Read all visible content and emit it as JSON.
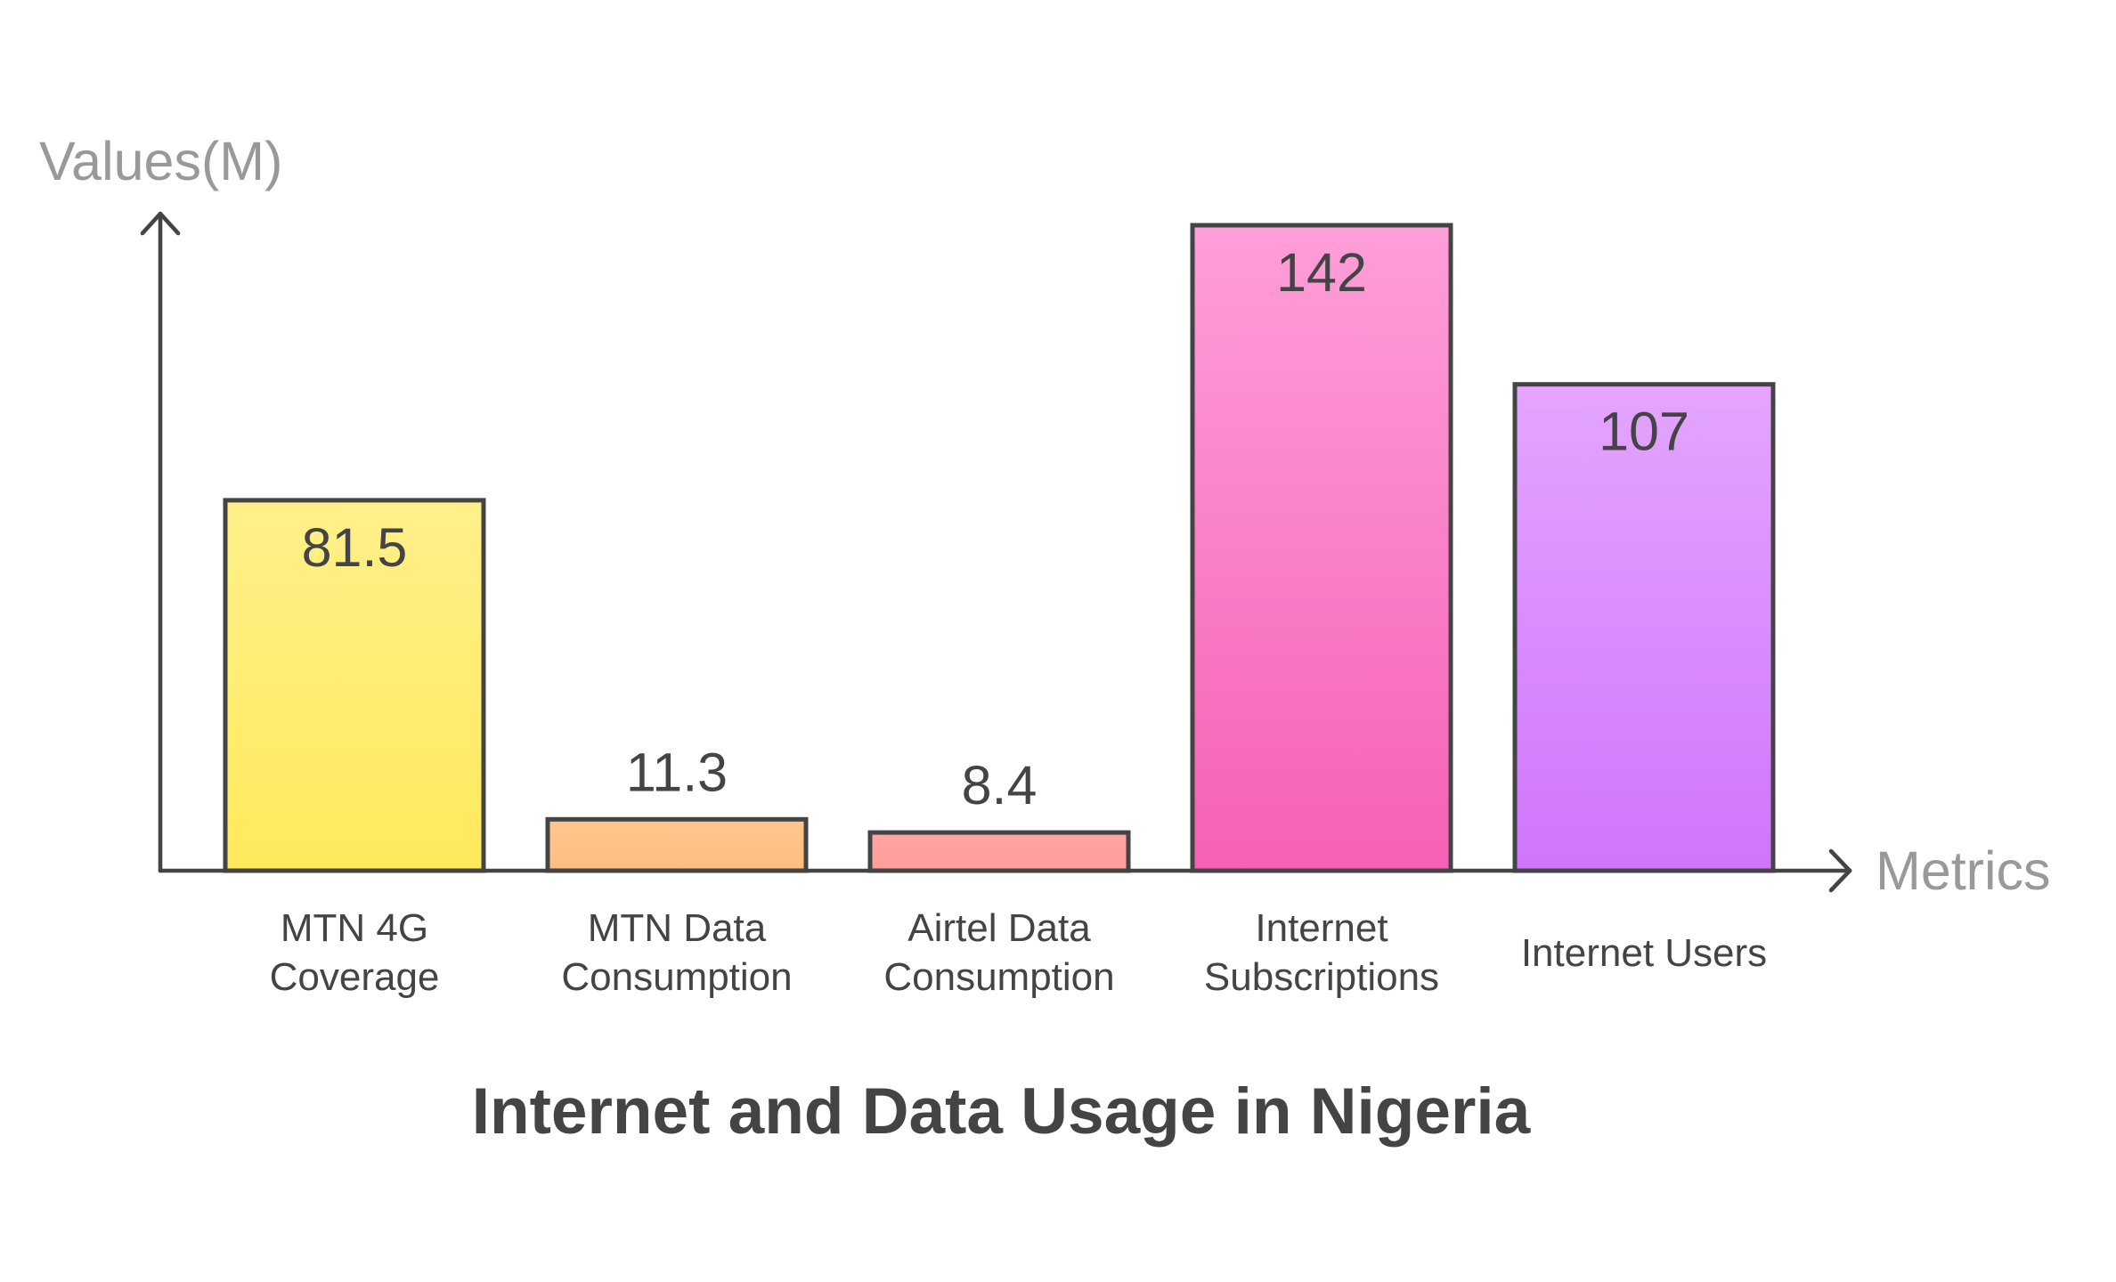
{
  "chart_data": {
    "type": "bar",
    "title": "Internet and Data Usage in Nigeria",
    "xlabel": "Metrics",
    "ylabel": "Values(M)",
    "categories": [
      [
        "MTN 4G",
        "Coverage"
      ],
      [
        "MTN Data",
        "Consumption"
      ],
      [
        "Airtel Data",
        "Consumption"
      ],
      [
        "Internet",
        "Subscriptions"
      ],
      [
        "Internet Users"
      ]
    ],
    "values": [
      81.5,
      11.3,
      8.4,
      142,
      107
    ],
    "value_labels": [
      "81.5",
      "11.3",
      "8.4",
      "142",
      "107"
    ],
    "ylim": [
      0,
      142
    ],
    "grid": false,
    "legend": "none",
    "colors": [
      {
        "top": "#fff08a",
        "bottom": "#ffe95c"
      },
      {
        "top": "#ffc78c",
        "bottom": "#ffbd80"
      },
      {
        "top": "#ffa5a3",
        "bottom": "#ff9d9a"
      },
      {
        "top": "#ff9fd9",
        "bottom": "#f560b5"
      },
      {
        "top": "#e4a5ff",
        "bottom": "#cf75fb"
      }
    ],
    "stroke_color": "#444444"
  }
}
